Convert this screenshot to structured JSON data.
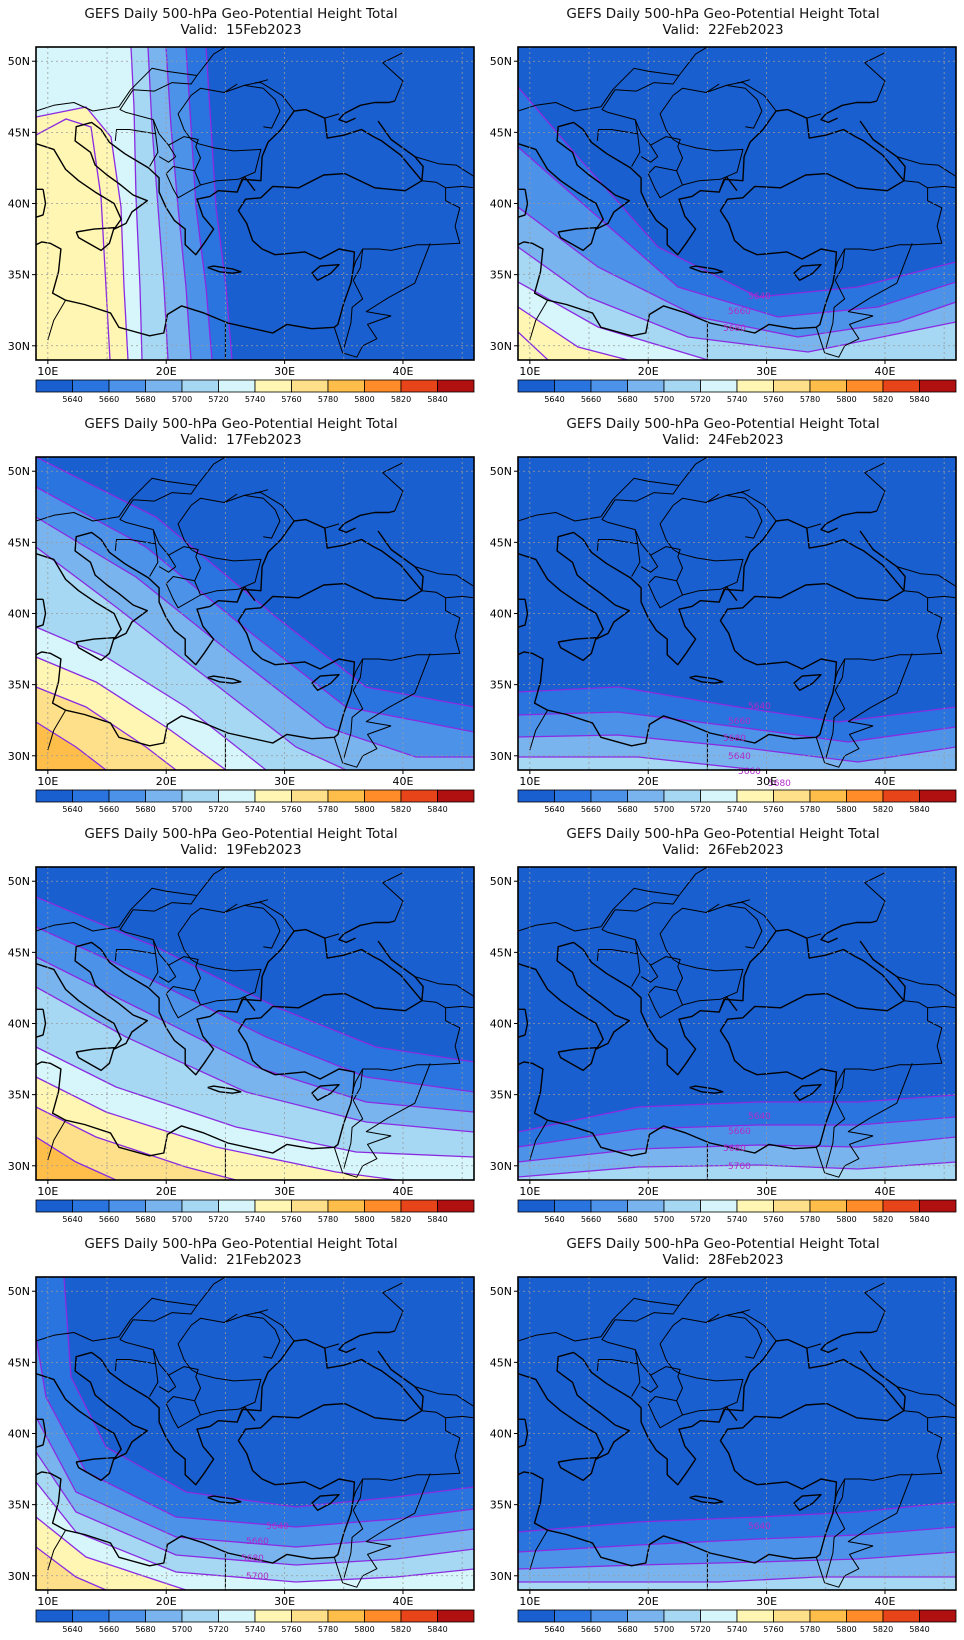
{
  "panel_title": "GEFS Daily 500-hPa Geo-Potential Height Total",
  "valid_prefix": "Valid:",
  "map": {
    "lat_ticks": [
      "50N",
      "45N",
      "40N",
      "35N",
      "30N"
    ],
    "lon_ticks": [
      "10E",
      "20E",
      "30E",
      "40E"
    ]
  },
  "colorbar": {
    "levels": [
      "5640",
      "5660",
      "5680",
      "5700",
      "5720",
      "5740",
      "5760",
      "5780",
      "5800",
      "5820",
      "5840"
    ],
    "colors": [
      "#1a5fd0",
      "#2a74df",
      "#4d92e9",
      "#7ab4ee",
      "#a6d8f3",
      "#d6f6fb",
      "#fff6b3",
      "#ffe08a",
      "#ffbe4a",
      "#ff8c28",
      "#e8441a",
      "#b01010"
    ]
  },
  "panels": [
    {
      "valid": "15Feb2023",
      "pattern": "meridional_trough",
      "contour_labels": []
    },
    {
      "valid": "22Feb2023",
      "pattern": "southwest_ridge",
      "contour_labels": [
        "5640",
        "5660",
        "5680"
      ]
    },
    {
      "valid": "17Feb2023",
      "pattern": "diagonal_ridge_strong",
      "contour_labels": []
    },
    {
      "valid": "24Feb2023",
      "pattern": "zonal_south",
      "contour_labels": [
        "5640",
        "5660",
        "5680",
        "5640",
        "5660",
        "5680"
      ]
    },
    {
      "valid": "19Feb2023",
      "pattern": "diagonal_ridge",
      "contour_labels": []
    },
    {
      "valid": "26Feb2023",
      "pattern": "zonal_south_flat",
      "contour_labels": [
        "5640",
        "5660",
        "5680",
        "5700"
      ]
    },
    {
      "valid": "21Feb2023",
      "pattern": "western_arc",
      "contour_labels": [
        "5640",
        "5660",
        "5680",
        "5700"
      ]
    },
    {
      "valid": "28Feb2023",
      "pattern": "zonal_far_south",
      "contour_labels": [
        "5640"
      ]
    }
  ]
}
